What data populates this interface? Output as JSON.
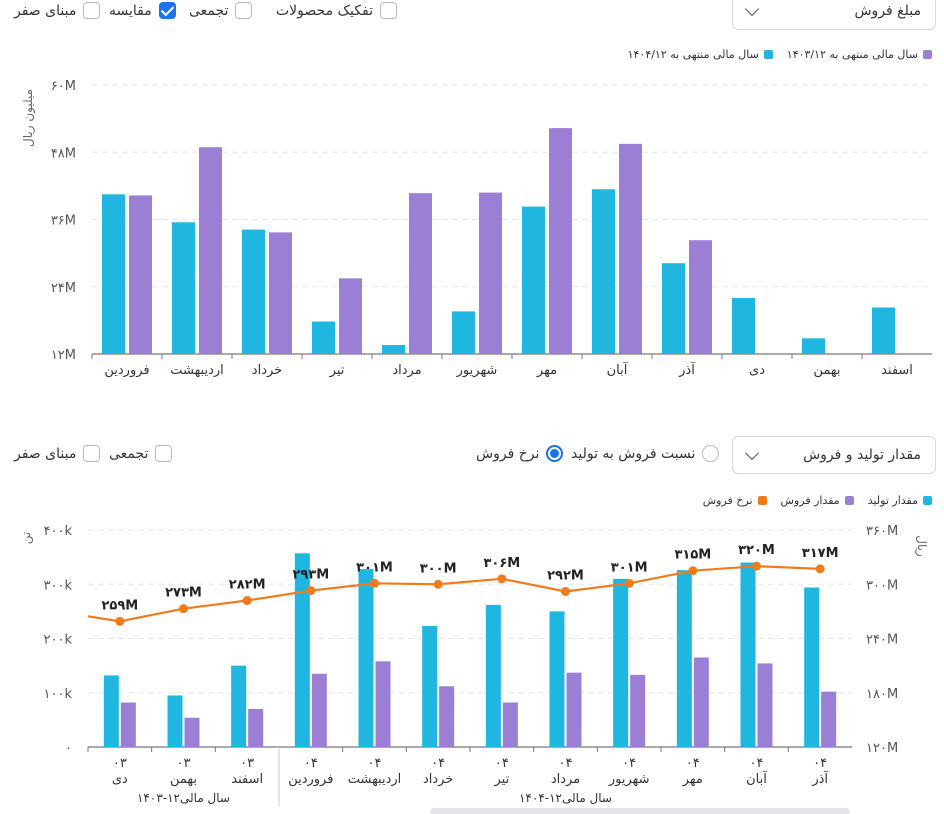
{
  "top": {
    "controls": {
      "dropdown_value": "مبلغ فروش",
      "split_products": "تفکیک محصولات",
      "cumulative": "تجمعی",
      "compare": "مقایسه",
      "zero_base": "مبنای صفر"
    },
    "legend": [
      {
        "label": "سال مالی منتهی به ۱۴۰۴/۱۲",
        "color": "#1fb7df"
      },
      {
        "label": "سال مالی منتهی به ۱۴۰۳/۱۲",
        "color": "#9b7fd4"
      }
    ],
    "y_axis_title": "میلیون ریال"
  },
  "bottom": {
    "controls": {
      "dropdown_value": "مقدار تولید و فروش",
      "ratio_option": "نسبت فروش به تولید",
      "rate_option": "نرخ فروش",
      "cumulative": "تجمعی",
      "zero_base": "مبنای صفر"
    },
    "legend": [
      {
        "label": "مقدار تولید",
        "color": "#1fb7df"
      },
      {
        "label": "مقدار فروش",
        "color": "#9b7fd4"
      },
      {
        "label": "نرخ فروش",
        "color": "#f07b1d"
      }
    ],
    "left_axis_title": "تن",
    "right_axis_title": "ریال",
    "group_labels": [
      "سال مالی۱۲-۱۴۰۳",
      "سال مالی۱۲-۱۴۰۴"
    ]
  },
  "chart_data": [
    {
      "type": "bar",
      "y_ticks": [
        "۱۲M",
        "۲۴M",
        "۳۶M",
        "۴۸M",
        "۶۰M"
      ],
      "ylim": [
        12,
        60
      ],
      "ylabel": "میلیون ریال",
      "categories": [
        "فروردین",
        "اردیبهشت",
        "خرداد",
        "تیر",
        "مرداد",
        "شهریور",
        "مهر",
        "آبان",
        "آذر",
        "دی",
        "بهمن",
        "اسفند"
      ],
      "series": [
        {
          "name": "سال مالی منتهی به ۱۴۰۴/۱۲",
          "color": "#1fb7df",
          "values": [
            40.5,
            35.5,
            34.2,
            17.8,
            13.6,
            19.6,
            38.3,
            41.4,
            28.2,
            22.0,
            14.8,
            20.3
          ]
        },
        {
          "name": "سال مالی منتهی به ۱۴۰۳/۱۲",
          "color": "#9b7fd4",
          "values": [
            40.3,
            48.9,
            33.7,
            25.5,
            40.7,
            40.8,
            52.3,
            49.5,
            32.3,
            null,
            null,
            null
          ]
        }
      ]
    },
    {
      "type": "bar",
      "y_ticks_left": [
        "۰",
        "۱۰۰k",
        "۲۰۰k",
        "۳۰۰k",
        "۴۰۰k"
      ],
      "ylim_left": [
        0,
        400
      ],
      "y_ticks_right": [
        "۱۲۰M",
        "۱۸۰M",
        "۲۴۰M",
        "۳۰۰M",
        "۳۶۰M"
      ],
      "ylim_right": [
        120,
        360
      ],
      "categories": [
        {
          "year": "۰۳",
          "month": "دی"
        },
        {
          "year": "۰۳",
          "month": "بهمن"
        },
        {
          "year": "۰۳",
          "month": "اسفند"
        },
        {
          "year": "۰۴",
          "month": "فروردین"
        },
        {
          "year": "۰۴",
          "month": "اردیبهشت"
        },
        {
          "year": "۰۴",
          "month": "خرداد"
        },
        {
          "year": "۰۴",
          "month": "تیر"
        },
        {
          "year": "۰۴",
          "month": "مرداد"
        },
        {
          "year": "۰۴",
          "month": "شهریور"
        },
        {
          "year": "۰۴",
          "month": "مهر"
        },
        {
          "year": "۰۴",
          "month": "آبان"
        },
        {
          "year": "۰۴",
          "month": "آذر"
        }
      ],
      "series": [
        {
          "name": "مقدار تولید",
          "axis": "left",
          "color": "#1fb7df",
          "values": [
            132,
            95,
            150,
            357,
            328,
            223,
            262,
            250,
            310,
            326,
            340,
            294
          ]
        },
        {
          "name": "مقدار فروش",
          "axis": "left",
          "color": "#9b7fd4",
          "values": [
            82,
            54,
            70,
            135,
            158,
            112,
            82,
            137,
            133,
            165,
            154,
            102
          ]
        },
        {
          "name": "نرخ فروش",
          "axis": "right",
          "type": "line",
          "color": "#f07b1d",
          "values": [
            259,
            273,
            282,
            293,
            301,
            300,
            306,
            292,
            301,
            315,
            320,
            317
          ],
          "labels": [
            "۲۵۹M",
            "۲۷۳M",
            "۲۸۲M",
            "۲۹۳M",
            "۳۰۱M",
            "۳۰۰M",
            "۳۰۶M",
            "۲۹۲M",
            "۳۰۱M",
            "۳۱۵M",
            "۳۲۰M",
            "۳۱۷M"
          ]
        }
      ]
    }
  ]
}
